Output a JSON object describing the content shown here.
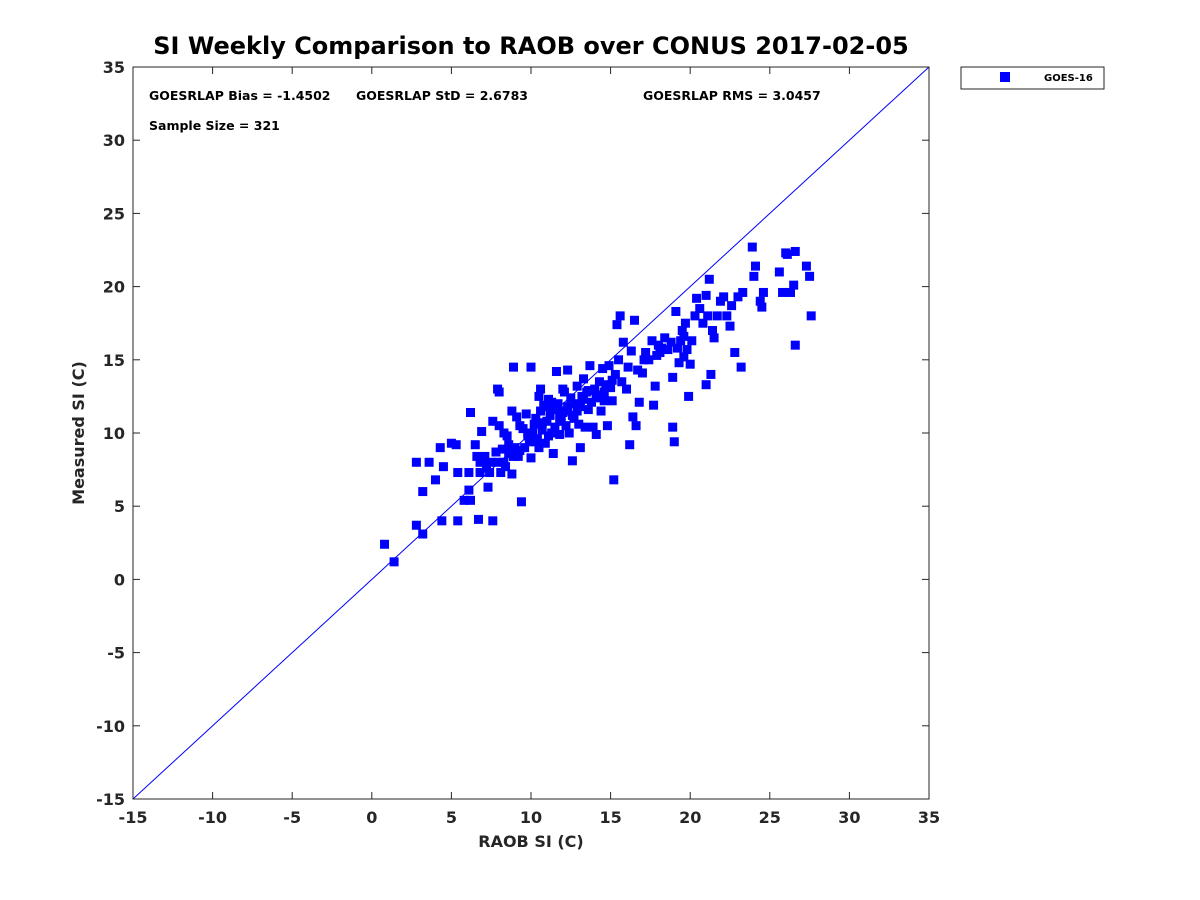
{
  "chart_data": {
    "type": "scatter",
    "title": "SI Weekly Comparison to RAOB over CONUS 2017-02-05",
    "xlabel": "RAOB SI (C)",
    "ylabel": "Measured SI (C)",
    "xlim": [
      -15,
      35
    ],
    "ylim": [
      -15,
      35
    ],
    "xticks": [
      -15,
      -10,
      -5,
      0,
      5,
      10,
      15,
      20,
      25,
      30,
      35
    ],
    "yticks": [
      -15,
      -10,
      -5,
      0,
      5,
      10,
      15,
      20,
      25,
      30,
      35
    ],
    "grid": false,
    "legend_position": "outside-top-right",
    "reference_line": {
      "from": [
        -15,
        -15
      ],
      "to": [
        35,
        35
      ]
    },
    "colors": {
      "series": "#0000ff",
      "line": "#0000ff",
      "axis": "#262626"
    },
    "annotations": {
      "bias": "GOESRLAP Bias = -1.4502",
      "std": "GOESRLAP StD = 2.6783",
      "rms": "GOESRLAP RMS = 3.0457",
      "sample": "Sample Size = 321"
    },
    "series": [
      {
        "name": "GOES-16",
        "marker": "square",
        "points": [
          [
            0.8,
            2.4
          ],
          [
            1.4,
            1.2
          ],
          [
            2.8,
            3.7
          ],
          [
            3.2,
            3.1
          ],
          [
            2.8,
            8.0
          ],
          [
            3.2,
            6.0
          ],
          [
            3.6,
            8.0
          ],
          [
            4.0,
            6.8
          ],
          [
            4.3,
            9.0
          ],
          [
            4.5,
            7.7
          ],
          [
            4.4,
            4.0
          ],
          [
            5.0,
            9.3
          ],
          [
            5.3,
            9.2
          ],
          [
            5.4,
            4.0
          ],
          [
            5.4,
            7.3
          ],
          [
            5.8,
            5.4
          ],
          [
            6.1,
            6.1
          ],
          [
            6.2,
            5.4
          ],
          [
            6.1,
            7.3
          ],
          [
            6.2,
            11.4
          ],
          [
            6.5,
            9.2
          ],
          [
            6.6,
            8.4
          ],
          [
            6.7,
            4.1
          ],
          [
            6.8,
            7.3
          ],
          [
            6.9,
            10.1
          ],
          [
            7.0,
            8.2
          ],
          [
            7.1,
            8.4
          ],
          [
            7.2,
            7.8
          ],
          [
            7.3,
            6.3
          ],
          [
            7.4,
            7.3
          ],
          [
            7.5,
            8.0
          ],
          [
            7.6,
            10.8
          ],
          [
            7.6,
            4.0
          ],
          [
            7.8,
            8.7
          ],
          [
            7.9,
            13.0
          ],
          [
            7.9,
            8.0
          ],
          [
            8.0,
            12.8
          ],
          [
            8.0,
            10.5
          ],
          [
            8.1,
            7.3
          ],
          [
            8.2,
            8.9
          ],
          [
            8.3,
            10.0
          ],
          [
            8.4,
            7.7
          ],
          [
            8.5,
            9.8
          ],
          [
            8.6,
            9.2
          ],
          [
            8.8,
            11.5
          ],
          [
            8.8,
            7.2
          ],
          [
            8.9,
            14.5
          ],
          [
            8.9,
            8.4
          ],
          [
            9.0,
            9.0
          ],
          [
            9.1,
            11.1
          ],
          [
            9.2,
            8.4
          ],
          [
            9.3,
            10.5
          ],
          [
            9.4,
            5.3
          ],
          [
            9.5,
            10.3
          ],
          [
            9.6,
            9.0
          ],
          [
            9.7,
            11.3
          ],
          [
            9.8,
            9.8
          ],
          [
            9.9,
            9.4
          ],
          [
            10.0,
            14.5
          ],
          [
            10.0,
            8.3
          ],
          [
            10.1,
            10.0
          ],
          [
            10.2,
            10.6
          ],
          [
            10.3,
            11.0
          ],
          [
            10.4,
            9.6
          ],
          [
            10.5,
            12.5
          ],
          [
            10.5,
            9.0
          ],
          [
            10.6,
            13.0
          ],
          [
            10.6,
            11.5
          ],
          [
            10.7,
            10.2
          ],
          [
            10.8,
            11.9
          ],
          [
            10.9,
            9.3
          ],
          [
            11.0,
            10.8
          ],
          [
            11.1,
            12.3
          ],
          [
            11.1,
            9.8
          ],
          [
            11.2,
            11.2
          ],
          [
            11.3,
            10.0
          ],
          [
            11.4,
            8.6
          ],
          [
            11.5,
            11.6
          ],
          [
            11.5,
            10.4
          ],
          [
            11.6,
            14.2
          ],
          [
            11.7,
            12.0
          ],
          [
            11.8,
            9.9
          ],
          [
            11.9,
            10.8
          ],
          [
            12.0,
            13.0
          ],
          [
            12.0,
            11.4
          ],
          [
            12.1,
            12.8
          ],
          [
            12.2,
            10.5
          ],
          [
            12.3,
            14.3
          ],
          [
            12.3,
            11.8
          ],
          [
            12.4,
            10.0
          ],
          [
            12.5,
            12.4
          ],
          [
            12.6,
            8.1
          ],
          [
            12.7,
            11.0
          ],
          [
            12.8,
            12.0
          ],
          [
            12.9,
            13.2
          ],
          [
            13.0,
            10.6
          ],
          [
            13.1,
            9.0
          ],
          [
            13.1,
            11.8
          ],
          [
            13.2,
            12.5
          ],
          [
            13.3,
            13.7
          ],
          [
            13.4,
            10.4
          ],
          [
            13.5,
            12.8
          ],
          [
            13.6,
            11.6
          ],
          [
            13.7,
            14.6
          ],
          [
            13.8,
            12.1
          ],
          [
            13.9,
            10.4
          ],
          [
            14.0,
            13.0
          ],
          [
            14.1,
            9.9
          ],
          [
            14.2,
            12.4
          ],
          [
            14.3,
            13.5
          ],
          [
            14.4,
            11.5
          ],
          [
            14.5,
            14.4
          ],
          [
            14.6,
            12.8
          ],
          [
            14.7,
            13.3
          ],
          [
            14.8,
            10.5
          ],
          [
            14.9,
            14.6
          ],
          [
            15.0,
            13.1
          ],
          [
            15.1,
            12.2
          ],
          [
            15.2,
            6.8
          ],
          [
            15.3,
            14.0
          ],
          [
            15.4,
            17.4
          ],
          [
            15.5,
            15.0
          ],
          [
            15.6,
            18.0
          ],
          [
            15.7,
            13.5
          ],
          [
            15.8,
            16.2
          ],
          [
            16.0,
            13.0
          ],
          [
            16.2,
            9.2
          ],
          [
            16.3,
            15.6
          ],
          [
            16.4,
            11.1
          ],
          [
            16.5,
            17.7
          ],
          [
            16.6,
            10.5
          ],
          [
            16.7,
            14.3
          ],
          [
            16.8,
            12.1
          ],
          [
            17.0,
            14.1
          ],
          [
            17.2,
            15.5
          ],
          [
            17.4,
            15.0
          ],
          [
            17.6,
            16.3
          ],
          [
            17.7,
            11.9
          ],
          [
            17.8,
            13.2
          ],
          [
            17.9,
            15.3
          ],
          [
            18.0,
            16.0
          ],
          [
            18.2,
            15.8
          ],
          [
            18.4,
            16.5
          ],
          [
            18.6,
            15.7
          ],
          [
            18.8,
            16.2
          ],
          [
            18.9,
            13.8
          ],
          [
            18.9,
            10.4
          ],
          [
            19.0,
            9.4
          ],
          [
            19.1,
            18.3
          ],
          [
            19.2,
            15.8
          ],
          [
            19.3,
            14.8
          ],
          [
            19.4,
            16.3
          ],
          [
            19.5,
            17.0
          ],
          [
            19.6,
            15.2
          ],
          [
            19.7,
            17.5
          ],
          [
            19.8,
            15.7
          ],
          [
            19.9,
            12.5
          ],
          [
            20.0,
            14.7
          ],
          [
            20.1,
            16.3
          ],
          [
            20.4,
            19.2
          ],
          [
            20.6,
            18.5
          ],
          [
            20.8,
            17.5
          ],
          [
            21.0,
            13.3
          ],
          [
            21.0,
            19.4
          ],
          [
            21.1,
            18.0
          ],
          [
            21.2,
            20.5
          ],
          [
            21.3,
            14.0
          ],
          [
            21.4,
            17.0
          ],
          [
            21.5,
            16.5
          ],
          [
            21.7,
            18.0
          ],
          [
            21.9,
            19.0
          ],
          [
            22.1,
            19.3
          ],
          [
            22.3,
            18.0
          ],
          [
            22.5,
            17.3
          ],
          [
            22.6,
            18.7
          ],
          [
            22.8,
            15.5
          ],
          [
            23.0,
            19.3
          ],
          [
            23.2,
            14.5
          ],
          [
            23.3,
            19.6
          ],
          [
            23.9,
            22.7
          ],
          [
            24.0,
            20.7
          ],
          [
            24.1,
            21.4
          ],
          [
            24.4,
            19.0
          ],
          [
            24.5,
            18.6
          ],
          [
            24.6,
            19.6
          ],
          [
            25.6,
            21.0
          ],
          [
            25.8,
            19.6
          ],
          [
            26.0,
            22.3
          ],
          [
            26.1,
            22.2
          ],
          [
            26.3,
            19.6
          ],
          [
            26.5,
            20.1
          ],
          [
            26.6,
            22.4
          ],
          [
            26.6,
            16.0
          ],
          [
            27.3,
            21.4
          ],
          [
            27.5,
            20.7
          ],
          [
            27.6,
            18.0
          ],
          [
            6.8,
            8.0
          ],
          [
            7.2,
            7.6
          ],
          [
            8.3,
            8.0
          ],
          [
            8.6,
            8.6
          ],
          [
            9.3,
            8.8
          ],
          [
            9.8,
            10.0
          ],
          [
            10.3,
            9.4
          ],
          [
            10.7,
            10.7
          ],
          [
            11.0,
            11.8
          ],
          [
            11.3,
            12.1
          ],
          [
            11.8,
            11.0
          ],
          [
            12.1,
            11.5
          ],
          [
            12.6,
            11.2
          ],
          [
            12.9,
            11.5
          ],
          [
            13.3,
            12.3
          ],
          [
            13.6,
            12.9
          ],
          [
            14.1,
            12.6
          ],
          [
            14.6,
            12.2
          ],
          [
            15.1,
            13.6
          ],
          [
            16.1,
            14.5
          ],
          [
            17.1,
            15.0
          ],
          [
            18.1,
            15.5
          ],
          [
            19.6,
            16.6
          ],
          [
            20.3,
            18.0
          ]
        ]
      }
    ]
  }
}
